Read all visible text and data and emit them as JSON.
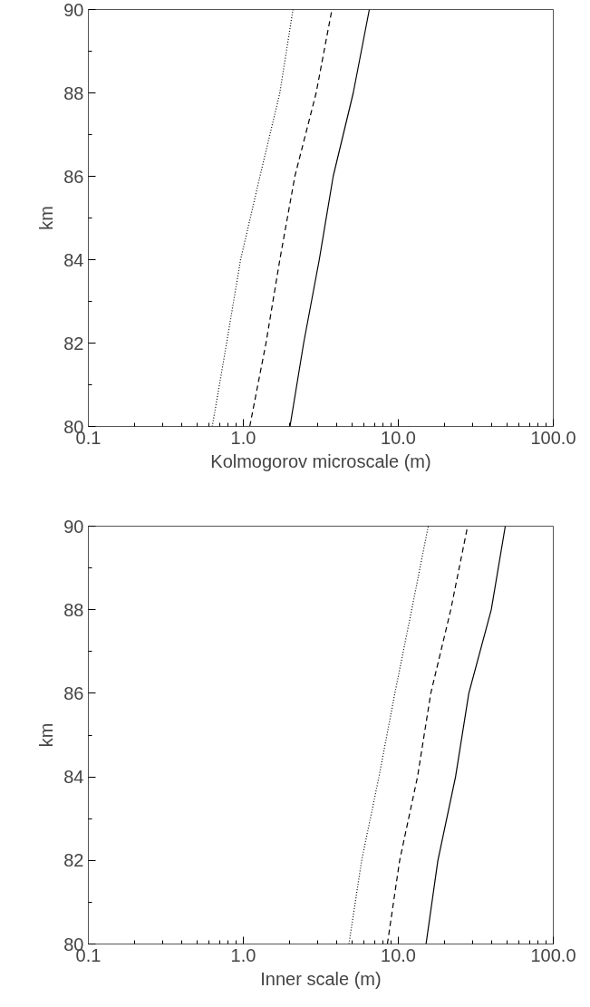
{
  "chart_data": [
    {
      "type": "line",
      "xlabel": "Kolmogorov microscale (m)",
      "ylabel": "km",
      "log": "x",
      "grid": false,
      "xlim": [
        0.1,
        100
      ],
      "ylim": [
        80,
        90
      ],
      "xticks": [
        {
          "value": 0.1,
          "label": "0.1"
        },
        {
          "value": 1,
          "label": "1.0"
        },
        {
          "value": 10,
          "label": "10.0"
        },
        {
          "value": 100,
          "label": "100.0"
        }
      ],
      "yticks": [
        80,
        82,
        84,
        86,
        88,
        90
      ],
      "series": [
        {
          "color": "#000000",
          "line_style": "dotted",
          "x": [
            0.63,
            0.78,
            0.96,
            1.28,
            1.72,
            2.09
          ],
          "values": [
            80,
            82,
            84,
            86,
            88,
            90
          ]
        },
        {
          "color": "#000000",
          "line_style": "dashed",
          "x": [
            1.1,
            1.4,
            1.72,
            2.15,
            2.95,
            3.73
          ],
          "values": [
            80,
            82,
            84,
            86,
            88,
            90
          ]
        },
        {
          "color": "#000000",
          "line_style": "solid",
          "x": [
            2.0,
            2.45,
            3.09,
            3.8,
            5.12,
            6.5
          ],
          "values": [
            80,
            82,
            84,
            86,
            88,
            90
          ]
        }
      ]
    },
    {
      "type": "line",
      "xlabel": "Inner scale (m)",
      "ylabel": "km",
      "log": "x",
      "grid": false,
      "xlim": [
        0.1,
        100
      ],
      "ylim": [
        80,
        90
      ],
      "xticks": [
        {
          "value": 0.1,
          "label": "0.1"
        },
        {
          "value": 1,
          "label": "1.0"
        },
        {
          "value": 10,
          "label": "10.0"
        },
        {
          "value": 100,
          "label": "100.0"
        }
      ],
      "yticks": [
        80,
        82,
        84,
        86,
        88,
        90
      ],
      "series": [
        {
          "color": "#000000",
          "line_style": "dotted",
          "x": [
            4.8,
            5.8,
            7.5,
            9.5,
            12.2,
            15.6
          ],
          "values": [
            80,
            82,
            84,
            86,
            88,
            90
          ]
        },
        {
          "color": "#000000",
          "line_style": "dashed",
          "x": [
            8.5,
            10.2,
            13.3,
            16.2,
            21.8,
            28
          ],
          "values": [
            80,
            82,
            84,
            86,
            88,
            90
          ]
        },
        {
          "color": "#000000",
          "line_style": "solid",
          "x": [
            15.1,
            18.0,
            23.4,
            28.5,
            39.8,
            49
          ],
          "values": [
            80,
            82,
            84,
            86,
            88,
            90
          ]
        }
      ]
    }
  ]
}
